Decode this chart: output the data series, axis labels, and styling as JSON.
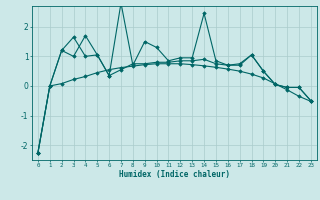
{
  "xlabel": "Humidex (Indice chaleur)",
  "bg_color": "#cce8e8",
  "grid_color": "#aacccc",
  "line_color": "#006666",
  "xlim": [
    -0.5,
    23.5
  ],
  "ylim": [
    -2.5,
    2.7
  ],
  "xtick_labels": [
    "0",
    "1",
    "2",
    "3",
    "4",
    "5",
    "6",
    "7",
    "8",
    "9",
    "10",
    "11",
    "12",
    "13",
    "14",
    "15",
    "16",
    "17",
    "18",
    "19",
    "20",
    "21",
    "22",
    "23"
  ],
  "ytick_values": [
    -2,
    -1,
    0,
    1,
    2
  ],
  "x": [
    0,
    1,
    2,
    3,
    4,
    5,
    6,
    7,
    8,
    9,
    10,
    11,
    12,
    13,
    14,
    15,
    16,
    17,
    18,
    19,
    20,
    21,
    22,
    23
  ],
  "series1": [
    -2.25,
    0.0,
    1.2,
    1.0,
    1.7,
    1.05,
    0.35,
    2.8,
    0.7,
    1.5,
    1.3,
    0.85,
    0.95,
    0.95,
    2.45,
    0.85,
    0.7,
    0.75,
    1.05,
    0.5,
    0.05,
    -0.05,
    -0.05,
    -0.5
  ],
  "series2": [
    -2.25,
    0.0,
    1.2,
    1.65,
    1.0,
    1.05,
    0.35,
    0.55,
    0.75,
    0.75,
    0.8,
    0.8,
    0.85,
    0.85,
    0.9,
    0.75,
    0.7,
    0.7,
    1.05,
    0.5,
    0.05,
    -0.05,
    -0.05,
    -0.5
  ],
  "series3": [
    -2.25,
    0.0,
    0.08,
    0.22,
    0.32,
    0.45,
    0.55,
    0.62,
    0.67,
    0.72,
    0.75,
    0.75,
    0.75,
    0.72,
    0.68,
    0.63,
    0.57,
    0.5,
    0.4,
    0.27,
    0.07,
    -0.13,
    -0.35,
    -0.52
  ]
}
